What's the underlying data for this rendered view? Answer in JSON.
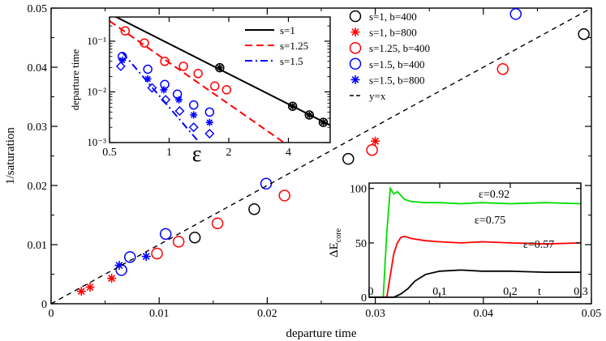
{
  "chart_data": [
    {
      "id": "main",
      "type": "scatter",
      "xlabel": "departure time",
      "ylabel": "1/saturation",
      "xlim": [
        0,
        0.05
      ],
      "ylim": [
        0,
        0.05
      ],
      "xticks": [
        0,
        0.01,
        0.02,
        0.03,
        0.04,
        0.05
      ],
      "xtick_labels": [
        "0",
        "0.01",
        "0.02",
        "0.03",
        "0.04",
        "0.05"
      ],
      "yticks": [
        0,
        0.01,
        0.02,
        0.03,
        0.04,
        0.05
      ],
      "ytick_labels": [
        "0",
        "0.01",
        "0.02",
        "0.03",
        "0.04",
        "0.05"
      ],
      "series": [
        {
          "name": "s=1, b=400",
          "marker": "circle",
          "color": "#000000",
          "x": [
            0.0133,
            0.0188,
            0.0275,
            0.0493
          ],
          "y": [
            0.0112,
            0.016,
            0.0245,
            0.0456
          ]
        },
        {
          "name": "s=1, b=800",
          "marker": "star",
          "color": "#ff0000",
          "x": [
            0.0028,
            0.0036,
            0.0056,
            0.03
          ],
          "y": [
            0.0021,
            0.0028,
            0.0043,
            0.0275
          ]
        },
        {
          "name": "s=1.25, b=400",
          "marker": "circle",
          "color": "#ff0000",
          "x": [
            0.0098,
            0.0118,
            0.0154,
            0.0216,
            0.0297,
            0.0418
          ],
          "y": [
            0.0085,
            0.0105,
            0.0136,
            0.0183,
            0.026,
            0.0397
          ]
        },
        {
          "name": "s=1.5, b=400",
          "marker": "circle",
          "color": "#0000ff",
          "x": [
            0.0065,
            0.0073,
            0.0106,
            0.0199,
            0.043
          ],
          "y": [
            0.0057,
            0.0079,
            0.0118,
            0.0203,
            0.049
          ]
        },
        {
          "name": "s=1.5, b=800",
          "marker": "star",
          "color": "#0000ff",
          "x": [
            0.0063,
            0.0088
          ],
          "y": [
            0.0065,
            0.008
          ]
        },
        {
          "name": "y=x",
          "marker": "dashed-line",
          "color": "#000000",
          "x": [
            0,
            0.05
          ],
          "y": [
            0,
            0.05
          ]
        }
      ]
    },
    {
      "id": "inset_top",
      "type": "line",
      "xlabel": "ε",
      "ylabel": "departure time",
      "xscale": "log",
      "yscale": "log",
      "xlim": [
        0.5,
        6.5
      ],
      "ylim": [
        0.001,
        0.3
      ],
      "xticks": [
        0.5,
        1,
        2,
        4
      ],
      "xtick_labels": [
        "0.5",
        "1",
        "2",
        "4"
      ],
      "yticks": [
        0.001,
        0.01,
        0.1
      ],
      "ytick_labels": [
        "10⁻³",
        "10⁻²",
        "10⁻¹"
      ],
      "lines": [
        {
          "name": "s=1",
          "style": "solid",
          "color": "#000000",
          "x": [
            0.5,
            6.5
          ],
          "y": [
            0.35,
            0.0022
          ]
        },
        {
          "name": "s=1.25",
          "style": "dashed",
          "color": "#ff0000",
          "x": [
            0.5,
            3.8
          ],
          "y": [
            0.25,
            0.001
          ]
        },
        {
          "name": "s=1.5",
          "style": "dashdot",
          "color": "#0000ff",
          "x": [
            0.58,
            1.42
          ],
          "y": [
            0.06,
            0.001
          ]
        }
      ],
      "points": [
        {
          "series": "s=1 circles+star",
          "marker": "circle-star",
          "color": "#000000",
          "x": [
            1.8,
            4.2,
            5.1,
            6.0
          ],
          "y": [
            0.03,
            0.0052,
            0.0035,
            0.0025
          ]
        },
        {
          "series": "s=1.25 circles",
          "marker": "circle",
          "color": "#ff0000",
          "x": [
            0.6,
            0.75,
            0.95,
            1.18,
            1.4,
            1.7,
            1.95
          ],
          "y": [
            0.16,
            0.092,
            0.04,
            0.032,
            0.023,
            0.013,
            0.011
          ]
        },
        {
          "series": "s=1.5 circles",
          "marker": "circle",
          "color": "#0000ff",
          "x": [
            0.58,
            0.78,
            0.95,
            1.1,
            1.33,
            1.6
          ],
          "y": [
            0.05,
            0.028,
            0.014,
            0.009,
            0.0055,
            0.004
          ]
        },
        {
          "series": "s=1.5 stars",
          "marker": "star",
          "color": "#0000ff",
          "x": [
            0.58,
            0.78,
            0.94,
            1.12,
            1.33,
            1.6
          ],
          "y": [
            0.042,
            0.018,
            0.011,
            0.007,
            0.0035,
            0.0025
          ]
        },
        {
          "series": "s=1.5 diamonds",
          "marker": "diamond",
          "color": "#0000ff",
          "x": [
            0.57,
            0.82,
            0.96,
            1.13,
            1.33,
            1.6
          ],
          "y": [
            0.032,
            0.012,
            0.007,
            0.0042,
            0.002,
            0.0015
          ]
        }
      ]
    },
    {
      "id": "inset_bottom",
      "type": "line",
      "xlabel": "t",
      "ylabel": "ΔE",
      "ylabel_sub": "core",
      "xlim": [
        0,
        0.3
      ],
      "ylim": [
        0,
        105
      ],
      "xticks": [
        0,
        0.1,
        0.2,
        0.3
      ],
      "xtick_labels": [
        "0",
        "0.1",
        "0.2",
        "0.3"
      ],
      "yticks": [
        0,
        50,
        100
      ],
      "ytick_labels": [
        "0",
        "50",
        "100"
      ],
      "lines": [
        {
          "name": "ε=0.92",
          "color": "#00dd00",
          "x": [
            0,
            0.02,
            0.025,
            0.03,
            0.035,
            0.04,
            0.05,
            0.06,
            0.08,
            0.1,
            0.13,
            0.16,
            0.2,
            0.25,
            0.3
          ],
          "y": [
            0,
            0,
            60,
            100,
            95,
            97,
            90,
            88,
            87,
            87,
            86,
            87,
            86,
            87,
            86
          ]
        },
        {
          "name": "ε=0.75",
          "color": "#ff0000",
          "x": [
            0,
            0.025,
            0.03,
            0.035,
            0.04,
            0.045,
            0.05,
            0.06,
            0.08,
            0.1,
            0.13,
            0.16,
            0.2,
            0.25,
            0.3
          ],
          "y": [
            0,
            0,
            20,
            40,
            50,
            55,
            56,
            54,
            52,
            51,
            50,
            51,
            50,
            49,
            50
          ]
        },
        {
          "name": "ε=0.57",
          "color": "#000000",
          "x": [
            0,
            0.035,
            0.045,
            0.055,
            0.065,
            0.08,
            0.1,
            0.13,
            0.16,
            0.2,
            0.25,
            0.3
          ],
          "y": [
            0,
            0,
            3,
            8,
            15,
            21,
            24,
            25,
            24,
            24,
            23,
            23
          ]
        }
      ],
      "annotations": [
        "ε=0.92",
        "ε=0.75",
        "ε=0.57"
      ]
    }
  ]
}
